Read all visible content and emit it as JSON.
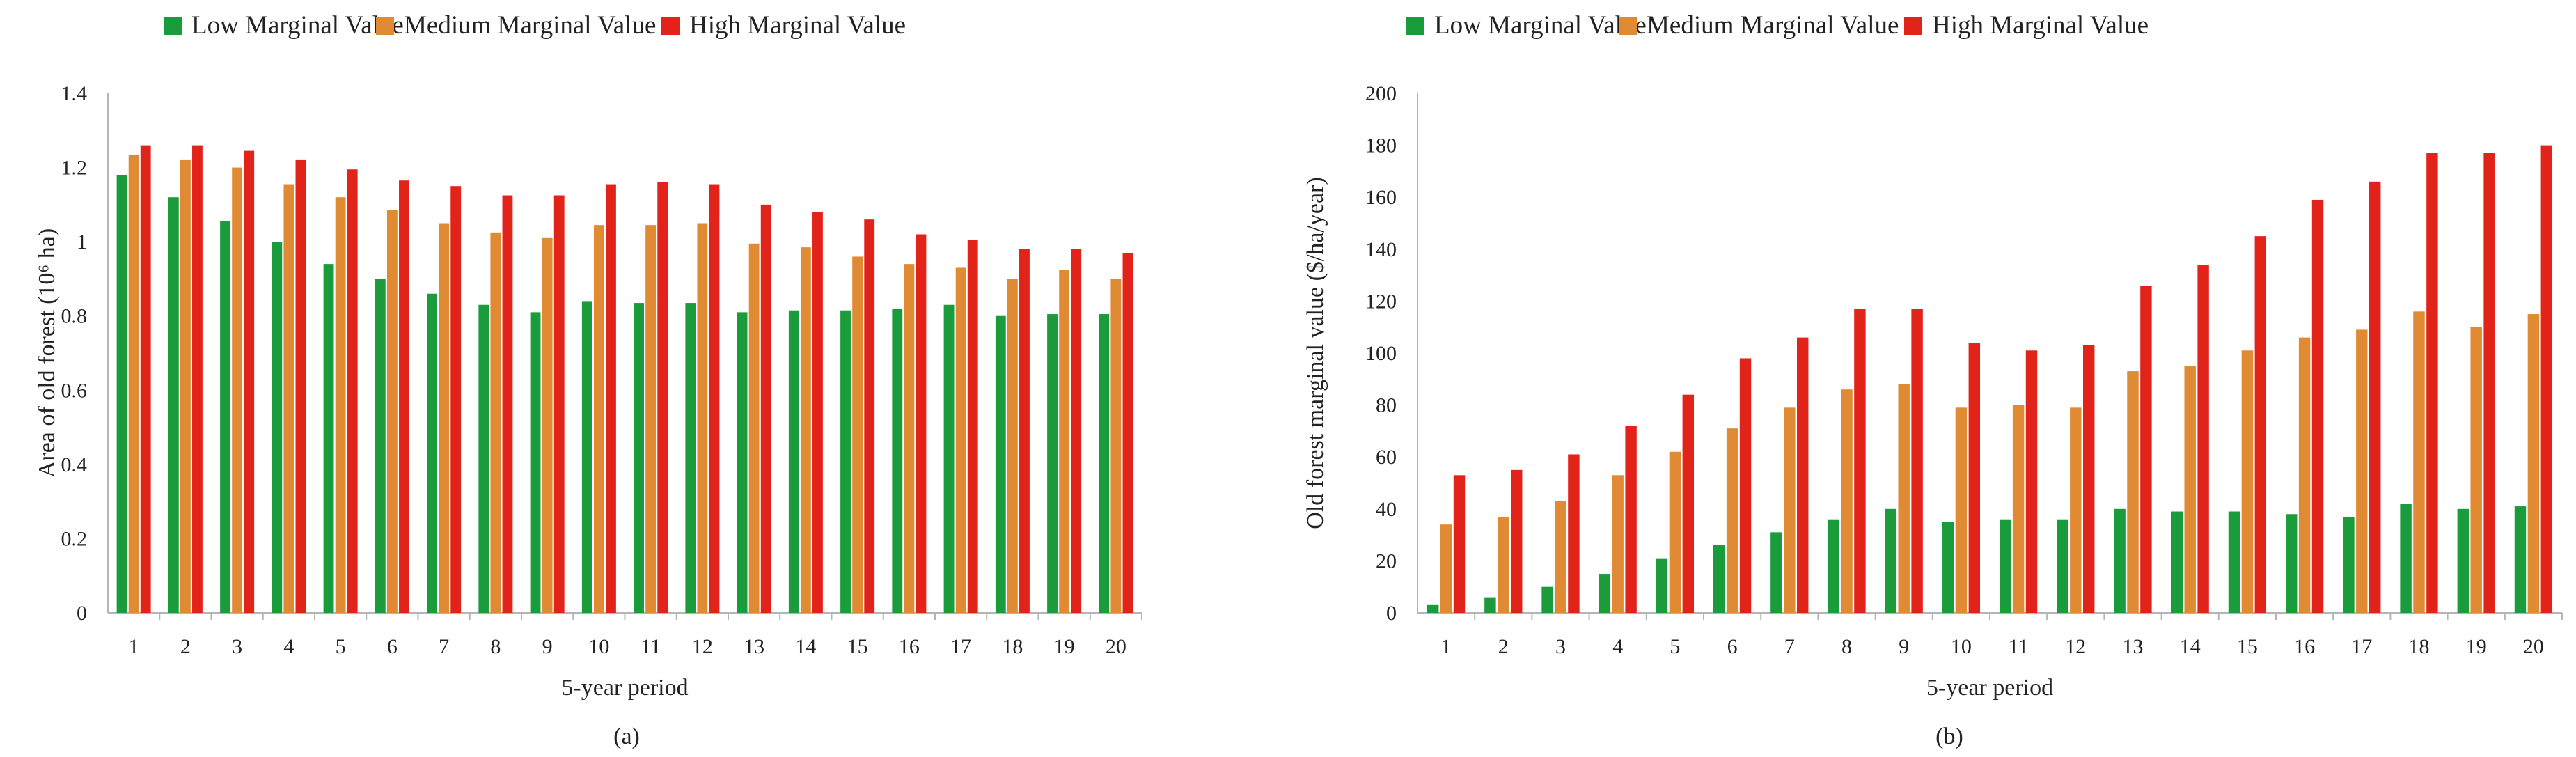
{
  "colors": {
    "low": "#1a9b3c",
    "medium": "#e08a34",
    "high": "#e2231a",
    "axis": "#b5b5b5",
    "text": "#222222"
  },
  "chart_data": [
    {
      "type": "bar",
      "panel_label": "(a)",
      "title": "",
      "xlabel": "5-year period",
      "ylabel": "Area of old forest (10⁶ ha)",
      "ylim": [
        0,
        1.4
      ],
      "yticks": [
        0,
        0.2,
        0.4,
        0.6,
        0.8,
        1,
        1.2,
        1.4
      ],
      "ytick_labels": [
        "0",
        "0.2",
        "0.4",
        "0.6",
        "0.8",
        "1",
        "1.2",
        "1.4"
      ],
      "grid": false,
      "legend_position": "top",
      "categories": [
        "1",
        "2",
        "3",
        "4",
        "5",
        "6",
        "7",
        "8",
        "9",
        "10",
        "11",
        "12",
        "13",
        "14",
        "15",
        "16",
        "17",
        "18",
        "19",
        "20"
      ],
      "series": [
        {
          "name": "Low Marginal Value",
          "color_key": "low",
          "values": [
            1.18,
            1.12,
            1.055,
            1.0,
            0.94,
            0.9,
            0.86,
            0.83,
            0.81,
            0.84,
            0.835,
            0.835,
            0.81,
            0.815,
            0.815,
            0.82,
            0.83,
            0.8,
            0.805,
            0.805
          ]
        },
        {
          "name": "Medium Marginal Value",
          "color_key": "medium",
          "values": [
            1.235,
            1.22,
            1.2,
            1.155,
            1.12,
            1.085,
            1.05,
            1.025,
            1.01,
            1.045,
            1.045,
            1.05,
            0.995,
            0.985,
            0.96,
            0.94,
            0.93,
            0.9,
            0.925,
            0.9
          ]
        },
        {
          "name": "High Marginal Value",
          "color_key": "high",
          "values": [
            1.26,
            1.26,
            1.245,
            1.22,
            1.195,
            1.165,
            1.15,
            1.125,
            1.125,
            1.155,
            1.16,
            1.155,
            1.1,
            1.08,
            1.06,
            1.02,
            1.005,
            0.98,
            0.98,
            0.97
          ]
        }
      ]
    },
    {
      "type": "bar",
      "panel_label": "(b)",
      "title": "",
      "xlabel": "5-year period",
      "ylabel": "Old forest marginal value ($/ha/year)",
      "ylim": [
        0,
        200
      ],
      "yticks": [
        0,
        20,
        40,
        60,
        80,
        100,
        120,
        140,
        160,
        180,
        200
      ],
      "ytick_labels": [
        "0",
        "20",
        "40",
        "60",
        "80",
        "100",
        "120",
        "140",
        "160",
        "180",
        "200"
      ],
      "grid": false,
      "legend_position": "top",
      "categories": [
        "1",
        "2",
        "3",
        "4",
        "5",
        "6",
        "7",
        "8",
        "9",
        "10",
        "11",
        "12",
        "13",
        "14",
        "15",
        "16",
        "17",
        "18",
        "19",
        "20"
      ],
      "series": [
        {
          "name": "Low Marginal Value",
          "color_key": "low",
          "values": [
            3,
            6,
            10,
            15,
            21,
            26,
            31,
            36,
            40,
            35,
            36,
            36,
            40,
            39,
            39,
            38,
            37,
            42,
            40,
            41
          ]
        },
        {
          "name": "Medium Marginal Value",
          "color_key": "medium",
          "values": [
            34,
            37,
            43,
            53,
            62,
            71,
            79,
            86,
            88,
            79,
            80,
            79,
            93,
            95,
            101,
            106,
            109,
            116,
            110,
            115
          ]
        },
        {
          "name": "High Marginal Value",
          "color_key": "high",
          "values": [
            53,
            55,
            61,
            72,
            84,
            98,
            106,
            117,
            117,
            104,
            101,
            103,
            126,
            134,
            145,
            159,
            166,
            177,
            177,
            180
          ]
        }
      ]
    }
  ]
}
